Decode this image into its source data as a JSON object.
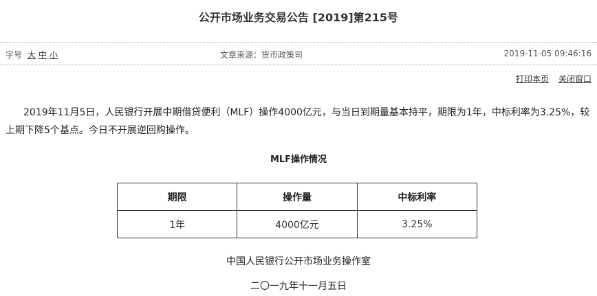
{
  "header": {
    "title": "公开市场业务交易公告 [2019]第215号"
  },
  "meta": {
    "font_size_label": "字号",
    "font_sizes": [
      "大",
      "中",
      "小"
    ],
    "source": "文章来源：货币政策司",
    "datetime": "2019-11-05 09:46:16"
  },
  "links": [
    "打印本页",
    "关闭窗口"
  ],
  "body": {
    "paragraph": "2019年11月5日，人民银行开展中期借贷便利（MLF）操作4000亿元，与当日到期量基本持平，期限为1年，中标利率为3.25%，较上期下降5个基点。今日不开展逆回购操作。"
  },
  "table": {
    "caption": "MLF操作情况",
    "header": [
      "期限",
      "操作量",
      "中标利率"
    ],
    "rows": [
      [
        "1年",
        "4000亿元",
        "3.25%"
      ]
    ]
  },
  "footer": {
    "issuer": "中国人民银行公开市场业务操作室",
    "date": "二〇一九年十一月五日"
  }
}
